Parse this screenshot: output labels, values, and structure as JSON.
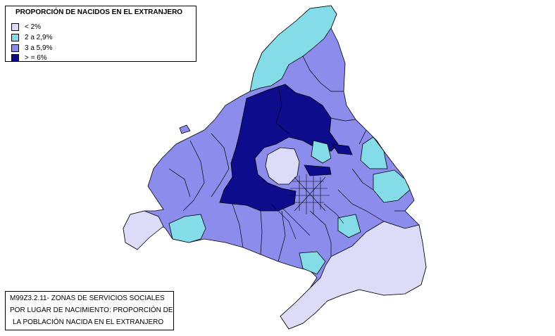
{
  "legend": {
    "title": "PROPORCIÓN DE NACIDOS EN EL EXTRANJERO",
    "items": [
      {
        "label": "< 2%",
        "color": "#dcdcf8"
      },
      {
        "label": "2 a 2,9%",
        "color": "#84dce8"
      },
      {
        "label": "3 a 5,9%",
        "color": "#8c8cec"
      },
      {
        "label": "> = 6%",
        "color": "#0c0c8c"
      }
    ]
  },
  "caption": {
    "line1": "M99Z3.2.11- ZONAS DE SERVICIOS SOCIALES",
    "line2": "POR LUGAR DE NACIMIENTO: PROPORCIÓN DE",
    "line3": "LA POBLACIÓN NACIDA EN EL EXTRANJERO"
  }
}
